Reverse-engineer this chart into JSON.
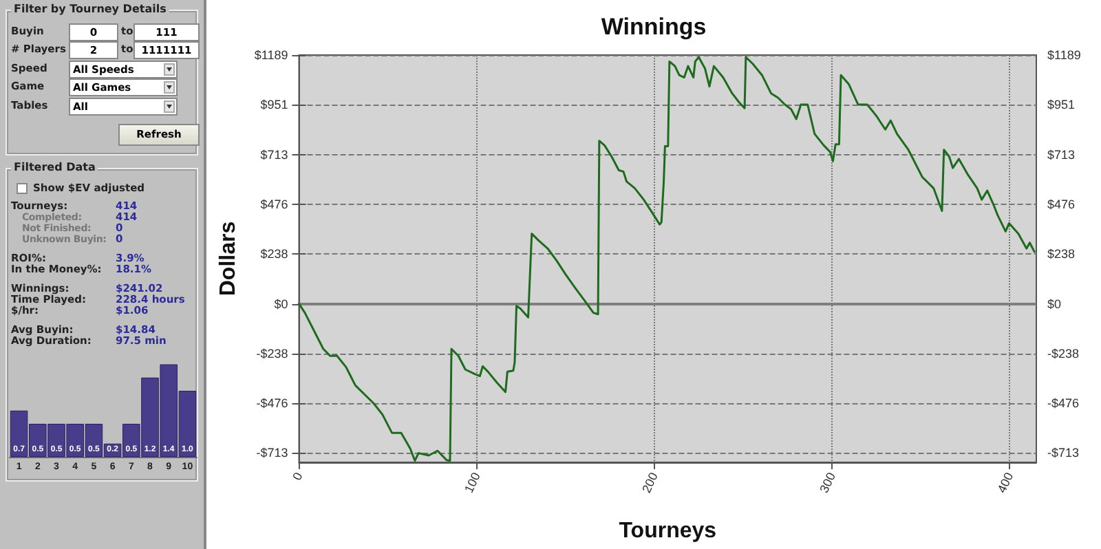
{
  "chart_data": [
    {
      "type": "other",
      "title": "Filter by Tourney Details",
      "annotations": [
        "Buyin",
        "0",
        "to",
        "111",
        "# Players",
        "2",
        "to",
        "1111111",
        "Speed",
        "All Speeds",
        "Game",
        "All Games",
        "Tables",
        "All",
        "Refresh"
      ]
    },
    {
      "type": "other",
      "title": "Filtered Data",
      "annotations": [
        "Show $EV adjusted",
        "Tourneys:",
        "414",
        "Completed:",
        "414",
        "Not Finished:",
        "0",
        "Unknown Buyin:",
        "0",
        "ROI%:",
        "3.9%",
        "In the Money%:",
        "18.1%",
        "Winnings:",
        "$241.02",
        "Time Played:",
        "228.4 hours",
        "$/hr:",
        "$1.06",
        "Avg Buyin:",
        "$14.84",
        "Avg Duration:",
        "97.5 min"
      ]
    },
    {
      "type": "bar",
      "categories": [
        "1",
        "2",
        "3",
        "4",
        "5",
        "6",
        "7",
        "8",
        "9",
        "10"
      ],
      "values": [
        0.7,
        0.5,
        0.5,
        0.5,
        0.5,
        0.2,
        0.5,
        1.2,
        1.4,
        1.0
      ],
      "color": "#483d8b",
      "value_labels": [
        "0.7",
        "0.5",
        "0.5",
        "0.5",
        "0.5",
        "0.2",
        "0.5",
        "1.2",
        "1.4",
        "1.0"
      ]
    },
    {
      "type": "line",
      "title": "Winnings",
      "xlabel": "Tourneys",
      "ylabel": "Dollars",
      "xlim": [
        0,
        415
      ],
      "xticks": [
        0,
        100,
        200,
        300,
        400
      ],
      "ylim": [
        -758,
        1189
      ],
      "yticks": [
        {
          "value": -713,
          "label": "-$713"
        },
        {
          "value": -476,
          "label": "-$476"
        },
        {
          "value": -238,
          "label": "-$238"
        },
        {
          "value": 0,
          "label": "$0"
        },
        {
          "value": 238,
          "label": "$238"
        },
        {
          "value": 476,
          "label": "$476"
        },
        {
          "value": 713,
          "label": "$713"
        },
        {
          "value": 951,
          "label": "$951"
        },
        {
          "value": 1189,
          "label": "$1189"
        }
      ],
      "y2lim": [
        -758,
        1189
      ],
      "y2ticks": [
        {
          "value": -713,
          "label": "-$713"
        },
        {
          "value": -476,
          "label": "-$476"
        },
        {
          "value": -238,
          "label": "-$238"
        },
        {
          "value": 0,
          "label": "$0"
        },
        {
          "value": 238,
          "label": "$238"
        },
        {
          "value": 476,
          "label": "$476"
        },
        {
          "value": 713,
          "label": "$713"
        },
        {
          "value": 951,
          "label": "$951"
        },
        {
          "value": 1189,
          "label": "$1189"
        }
      ],
      "grid": true,
      "marker": "none",
      "line_style": "solid",
      "ref_lines": [
        {
          "axis": "y",
          "value": 0,
          "color": "#7f7f7f",
          "line_style": "solid"
        }
      ],
      "series": [
        {
          "color": "#1e6b1e",
          "x": [
            0,
            3.3,
            13.7,
            17.5,
            21.4,
            26.5,
            31.7,
            42,
            47,
            52.3,
            57.5,
            62.6,
            65.2,
            67.3,
            73,
            78,
            83,
            85,
            85.8,
            89.7,
            93.6,
            98.7,
            101.8,
            103.4,
            106.4,
            111.6,
            116.2,
            117.3,
            120.6,
            121.4,
            122.4,
            124.5,
            129,
            131,
            134.8,
            140,
            145,
            150,
            155.4,
            160.6,
            165.7,
            168.3,
            169,
            172,
            176,
            180,
            182.6,
            184.4,
            189,
            194,
            199,
            203,
            204,
            205.3,
            206,
            207.7,
            208.5,
            211.6,
            214,
            216.8,
            219,
            222,
            223,
            225,
            228.5,
            231,
            233.5,
            238.7,
            243.8,
            247.7,
            250.8,
            251.5,
            255.4,
            260.6,
            265.7,
            269.6,
            273.5,
            277,
            279.9,
            282.5,
            286.3,
            290.2,
            295.4,
            299,
            300.5,
            302,
            304,
            305,
            309.5,
            314.7,
            319.8,
            325,
            330,
            333,
            336.6,
            343,
            350.8,
            357.2,
            361.9,
            363,
            366,
            368,
            371.4,
            376.5,
            381.7,
            384.3,
            387.4,
            390.8,
            393.3,
            397.7,
            399.7,
            404.9,
            409.5,
            411.3,
            413.9
          ],
          "values": [
            0,
            -43,
            -216,
            -249,
            -249,
            -303,
            -390,
            -476,
            -530,
            -617,
            -617,
            -692,
            -750,
            -714,
            -725,
            -703,
            -747,
            -750,
            -216,
            -249,
            -314,
            -335,
            -346,
            -299,
            -325,
            -379,
            -422,
            -325,
            -320,
            -281,
            -11,
            -22,
            -65,
            335,
            303,
            264,
            206,
            141,
            76,
            17,
            -43,
            -50,
            779,
            757,
            703,
            638,
            632,
            584,
            552,
            498,
            433,
            379,
            390,
            584,
            753,
            753,
            1158,
            1136,
            1093,
            1082,
            1136,
            1082,
            1158,
            1179,
            1125,
            1039,
            1136,
            1082,
            1006,
            963,
            935,
            1179,
            1147,
            1093,
            1006,
            985,
            952,
            930,
            883,
            952,
            952,
            812,
            757,
            725,
            682,
            762,
            762,
            1093,
            1049,
            952,
            952,
            898,
            833,
            876,
            812,
            736,
            606,
            552,
            444,
            736,
            703,
            649,
            692,
            617,
            552,
            498,
            541,
            476,
            422,
            346,
            385,
            335,
            264,
            292,
            249
          ]
        }
      ]
    }
  ]
}
